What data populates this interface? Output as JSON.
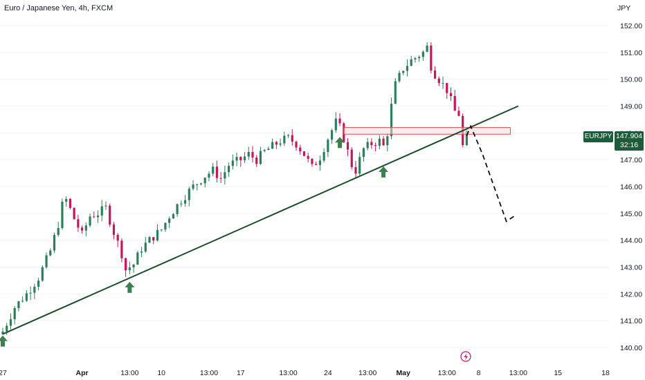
{
  "header": {
    "title": "Euro / Japanese Yen, 4h, FXCM"
  },
  "price_axis": {
    "unit": "JPY"
  },
  "symbol_badge": {
    "label": "EURJPY"
  },
  "price_badge": {
    "price": "147.904",
    "countdown": "32:16"
  },
  "colors": {
    "up": "#2e7d5b",
    "down": "#c2185b",
    "trendline": "#1b4d2b",
    "arrow": "#3f7f4f",
    "zone_border": "#d9534f",
    "zone_fill": "#f8d7da"
  },
  "icons": {
    "alert": "lightning-alert-icon"
  },
  "chart_data": {
    "type": "candlestick",
    "title": "Euro / Japanese Yen, 4h, FXCM",
    "ylim": [
      139.8,
      152.5
    ],
    "y_ticks": [
      140.0,
      141.0,
      142.0,
      143.0,
      144.0,
      145.0,
      146.0,
      147.0,
      148.0,
      149.0,
      150.0,
      151.0,
      152.0
    ],
    "x_tick_labels": [
      {
        "label": "27",
        "bold": false
      },
      {
        "label": "Apr",
        "bold": true
      },
      {
        "label": "13:00",
        "bold": false
      },
      {
        "label": "10",
        "bold": false
      },
      {
        "label": "13:00",
        "bold": false
      },
      {
        "label": "17",
        "bold": false
      },
      {
        "label": "13:00",
        "bold": false
      },
      {
        "label": "24",
        "bold": false
      },
      {
        "label": "13:00",
        "bold": false
      },
      {
        "label": "May",
        "bold": true
      },
      {
        "label": "13:00",
        "bold": false
      },
      {
        "label": "8",
        "bold": false
      },
      {
        "label": "13:00",
        "bold": false
      },
      {
        "label": "15",
        "bold": false
      },
      {
        "label": "18",
        "bold": false
      }
    ],
    "x_tick_bars": [
      0,
      20,
      32,
      40,
      52,
      60,
      72,
      82,
      92,
      101,
      112,
      120,
      130,
      140,
      152
    ],
    "close_path": [
      [
        0,
        140.6
      ],
      [
        3,
        141.5
      ],
      [
        6,
        142.0
      ],
      [
        9,
        142.6
      ],
      [
        12,
        143.6
      ],
      [
        14,
        144.6
      ],
      [
        15,
        145.3
      ],
      [
        16,
        145.5
      ],
      [
        18,
        144.8
      ],
      [
        20,
        144.2
      ],
      [
        22,
        144.9
      ],
      [
        24,
        145.0
      ],
      [
        26,
        145.2
      ],
      [
        28,
        144.3
      ],
      [
        30,
        143.5
      ],
      [
        31,
        142.9
      ],
      [
        33,
        143.1
      ],
      [
        35,
        143.7
      ],
      [
        37,
        144.0
      ],
      [
        40,
        144.4
      ],
      [
        42,
        144.9
      ],
      [
        45,
        145.5
      ],
      [
        48,
        146.0
      ],
      [
        51,
        146.4
      ],
      [
        53,
        146.6
      ],
      [
        55,
        146.3
      ],
      [
        57,
        146.8
      ],
      [
        60,
        147.0
      ],
      [
        62,
        147.2
      ],
      [
        64,
        147.0
      ],
      [
        66,
        147.3
      ],
      [
        68,
        147.5
      ],
      [
        70,
        147.7
      ],
      [
        72,
        147.8
      ],
      [
        74,
        147.6
      ],
      [
        76,
        147.2
      ],
      [
        78,
        146.7
      ],
      [
        80,
        147.1
      ],
      [
        82,
        147.8
      ],
      [
        84,
        148.4
      ],
      [
        85,
        148.2
      ],
      [
        86,
        147.8
      ],
      [
        88,
        146.8
      ],
      [
        89,
        146.6
      ],
      [
        91,
        147.4
      ],
      [
        93,
        147.6
      ],
      [
        95,
        147.7
      ],
      [
        96,
        147.5
      ],
      [
        97,
        148.0
      ],
      [
        98,
        149.0
      ],
      [
        99,
        149.8
      ],
      [
        101,
        150.4
      ],
      [
        103,
        150.7
      ],
      [
        105,
        150.9
      ],
      [
        106,
        151.0
      ],
      [
        107,
        151.2
      ],
      [
        108,
        150.5
      ],
      [
        109,
        150.2
      ],
      [
        110,
        150.0
      ],
      [
        112,
        149.6
      ],
      [
        113,
        149.2
      ],
      [
        114,
        148.8
      ],
      [
        115,
        148.7
      ],
      [
        116,
        147.5
      ],
      [
        117,
        147.9
      ]
    ],
    "trendline": [
      [
        0,
        140.5
      ],
      [
        130,
        149.0
      ]
    ],
    "resistance_zone": {
      "y_low": 147.95,
      "y_high": 148.2,
      "x_start": 86,
      "x_end": 128
    },
    "support_arrows": [
      {
        "x": 0,
        "y": 140.5
      },
      {
        "x": 32,
        "y": 142.5
      },
      {
        "x": 85,
        "y": 147.9
      },
      {
        "x": 96,
        "y": 146.8
      }
    ],
    "projection": [
      [
        117,
        147.9
      ],
      [
        118,
        148.25
      ],
      [
        121,
        147.2
      ],
      [
        127,
        144.7
      ],
      [
        129,
        144.9
      ]
    ]
  }
}
